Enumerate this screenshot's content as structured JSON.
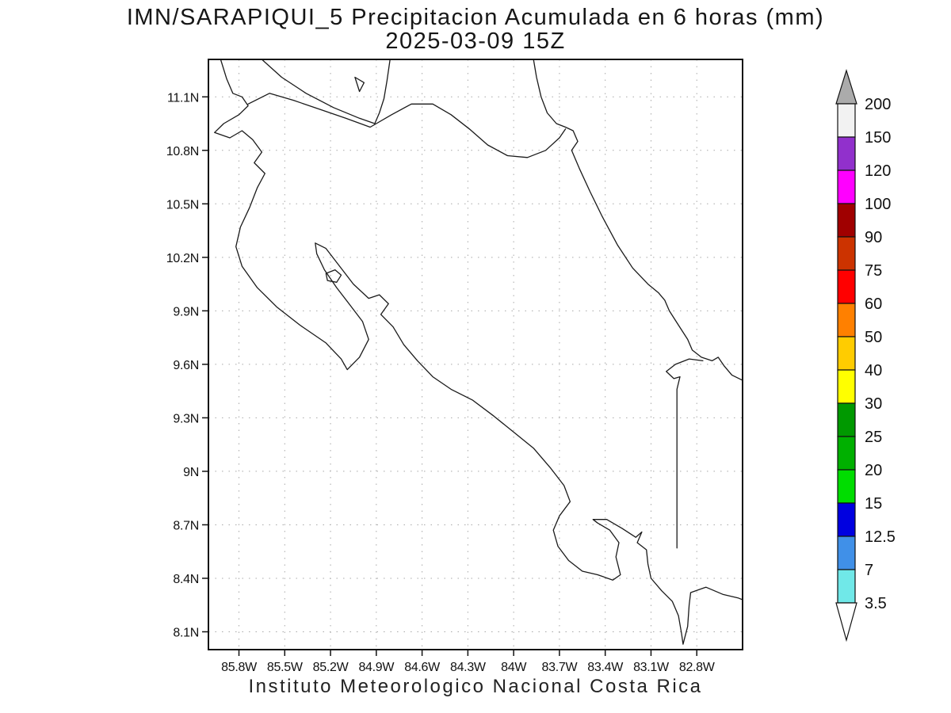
{
  "title": {
    "line1": "IMN/SARAPIQUI_5 Precipitacion Acumulada en 6 horas (mm)",
    "line2": "2025-03-09 15Z"
  },
  "caption": "Instituto Meteorologico Nacional Costa Rica",
  "axes": {
    "extent": {
      "lon_min": -86.0,
      "lon_max": -82.5,
      "lat_min": 8.0,
      "lat_max": 11.31
    },
    "grid_style": "dotted",
    "lat_ticks": [
      {
        "value": 11.1,
        "label": "11.1N"
      },
      {
        "value": 10.8,
        "label": "10.8N"
      },
      {
        "value": 10.5,
        "label": "10.5N"
      },
      {
        "value": 10.2,
        "label": "10.2N"
      },
      {
        "value": 9.9,
        "label": "9.9N"
      },
      {
        "value": 9.6,
        "label": "9.6N"
      },
      {
        "value": 9.3,
        "label": "9.3N"
      },
      {
        "value": 9.0,
        "label": "9N"
      },
      {
        "value": 8.7,
        "label": "8.7N"
      },
      {
        "value": 8.4,
        "label": "8.4N"
      },
      {
        "value": 8.1,
        "label": "8.1N"
      }
    ],
    "lon_ticks": [
      {
        "value": -85.8,
        "label": "85.8W"
      },
      {
        "value": -85.5,
        "label": "85.5W"
      },
      {
        "value": -85.2,
        "label": "85.2W"
      },
      {
        "value": -84.9,
        "label": "84.9W"
      },
      {
        "value": -84.6,
        "label": "84.6W"
      },
      {
        "value": -84.3,
        "label": "84.3W"
      },
      {
        "value": -84.0,
        "label": "84W"
      },
      {
        "value": -83.7,
        "label": "83.7W"
      },
      {
        "value": -83.4,
        "label": "83.4W"
      },
      {
        "value": -83.1,
        "label": "83.1W"
      },
      {
        "value": -82.8,
        "label": "82.8W"
      }
    ]
  },
  "colorbar": {
    "labels_top_to_bottom": [
      "200",
      "150",
      "120",
      "100",
      "90",
      "75",
      "60",
      "50",
      "40",
      "30",
      "25",
      "20",
      "15",
      "12.5",
      "7",
      "3.5"
    ],
    "segment_colors_top_to_bottom": [
      "#f2f2f2",
      "#9130cc",
      "#ff00ff",
      "#a00000",
      "#cc3300",
      "#ff0000",
      "#ff8000",
      "#ffcc00",
      "#ffff00",
      "#009900",
      "#00b000",
      "#00dd00",
      "#0000e0",
      "#4090e8",
      "#70e8e8"
    ],
    "arrow_top_color": "#ababab",
    "arrow_bottom_color": "#ffffff"
  },
  "map": {
    "stroke_color": "#1a1a1a",
    "grid_color": "#a8a8a8",
    "coastlines": {
      "pacific_coast": [
        [
          -85.92,
          11.31
        ],
        [
          -85.88,
          11.2
        ],
        [
          -85.84,
          11.12
        ],
        [
          -85.78,
          11.1
        ],
        [
          -85.74,
          11.05
        ],
        [
          -85.8,
          11.0
        ],
        [
          -85.9,
          10.95
        ],
        [
          -85.96,
          10.9
        ],
        [
          -85.86,
          10.87
        ],
        [
          -85.78,
          10.91
        ],
        [
          -85.71,
          10.86
        ],
        [
          -85.65,
          10.79
        ],
        [
          -85.7,
          10.73
        ],
        [
          -85.63,
          10.67
        ],
        [
          -85.68,
          10.59
        ],
        [
          -85.73,
          10.48
        ],
        [
          -85.79,
          10.37
        ],
        [
          -85.82,
          10.26
        ],
        [
          -85.78,
          10.15
        ],
        [
          -85.68,
          10.03
        ],
        [
          -85.55,
          9.92
        ],
        [
          -85.4,
          9.82
        ],
        [
          -85.23,
          9.72
        ],
        [
          -85.13,
          9.63
        ],
        [
          -85.09,
          9.57
        ],
        [
          -85.01,
          9.64
        ],
        [
          -84.95,
          9.74
        ],
        [
          -84.99,
          9.84
        ],
        [
          -85.07,
          9.93
        ],
        [
          -85.16,
          10.03
        ],
        [
          -85.24,
          10.13
        ],
        [
          -85.29,
          10.22
        ],
        [
          -85.3,
          10.28
        ],
        [
          -85.23,
          10.25
        ],
        [
          -85.14,
          10.15
        ],
        [
          -85.05,
          10.05
        ],
        [
          -84.95,
          9.97
        ],
        [
          -84.88,
          9.99
        ],
        [
          -84.82,
          9.94
        ],
        [
          -84.87,
          9.88
        ],
        [
          -84.79,
          9.81
        ],
        [
          -84.72,
          9.71
        ],
        [
          -84.63,
          9.62
        ],
        [
          -84.53,
          9.53
        ],
        [
          -84.41,
          9.46
        ],
        [
          -84.27,
          9.4
        ],
        [
          -84.13,
          9.31
        ],
        [
          -84.0,
          9.22
        ],
        [
          -83.87,
          9.13
        ],
        [
          -83.76,
          9.02
        ],
        [
          -83.67,
          8.92
        ],
        [
          -83.63,
          8.83
        ],
        [
          -83.7,
          8.75
        ],
        [
          -83.74,
          8.67
        ],
        [
          -83.71,
          8.58
        ],
        [
          -83.64,
          8.5
        ],
        [
          -83.55,
          8.44
        ],
        [
          -83.45,
          8.42
        ],
        [
          -83.35,
          8.39
        ],
        [
          -83.3,
          8.42
        ],
        [
          -83.33,
          8.52
        ],
        [
          -83.31,
          8.6
        ],
        [
          -83.37,
          8.67
        ],
        [
          -83.45,
          8.71
        ],
        [
          -83.48,
          8.73
        ],
        [
          -83.39,
          8.73
        ],
        [
          -83.29,
          8.68
        ],
        [
          -83.2,
          8.63
        ],
        [
          -83.16,
          8.66
        ],
        [
          -83.19,
          8.6
        ],
        [
          -83.13,
          8.56
        ],
        [
          -83.12,
          8.48
        ],
        [
          -83.1,
          8.4
        ],
        [
          -83.03,
          8.33
        ],
        [
          -82.96,
          8.27
        ],
        [
          -82.92,
          8.19
        ],
        [
          -82.9,
          8.09
        ],
        [
          -82.89,
          8.03
        ],
        [
          -82.86,
          8.13
        ],
        [
          -82.85,
          8.25
        ],
        [
          -82.84,
          8.32
        ],
        [
          -82.74,
          8.35
        ],
        [
          -82.63,
          8.31
        ],
        [
          -82.53,
          8.29
        ],
        [
          -82.5,
          8.28
        ]
      ],
      "lake_nicaragua_shore": [
        [
          -85.65,
          11.31
        ],
        [
          -85.52,
          11.21
        ],
        [
          -85.36,
          11.12
        ],
        [
          -85.18,
          11.04
        ],
        [
          -85.01,
          10.98
        ],
        [
          -84.91,
          10.95
        ],
        [
          -84.88,
          11.01
        ],
        [
          -84.85,
          11.09
        ],
        [
          -84.83,
          11.19
        ],
        [
          -84.81,
          11.31
        ]
      ],
      "nicaragua_border_san_juan_river": [
        [
          -85.74,
          11.06
        ],
        [
          -85.6,
          11.12
        ],
        [
          -85.44,
          11.08
        ],
        [
          -85.27,
          11.03
        ],
        [
          -85.1,
          10.98
        ],
        [
          -84.94,
          10.93
        ],
        [
          -84.8,
          11.0
        ],
        [
          -84.67,
          11.06
        ],
        [
          -84.53,
          11.06
        ],
        [
          -84.41,
          11.0
        ],
        [
          -84.29,
          10.92
        ],
        [
          -84.17,
          10.83
        ],
        [
          -84.04,
          10.77
        ],
        [
          -83.91,
          10.76
        ],
        [
          -83.79,
          10.8
        ],
        [
          -83.7,
          10.87
        ],
        [
          -83.66,
          10.92
        ]
      ],
      "caribbean_coast": [
        [
          -83.87,
          11.31
        ],
        [
          -83.85,
          11.21
        ],
        [
          -83.82,
          11.1
        ],
        [
          -83.78,
          11.01
        ],
        [
          -83.72,
          10.95
        ],
        [
          -83.66,
          10.93
        ],
        [
          -83.61,
          10.91
        ],
        [
          -83.58,
          10.85
        ],
        [
          -83.62,
          10.8
        ],
        [
          -83.57,
          10.7
        ],
        [
          -83.5,
          10.57
        ],
        [
          -83.42,
          10.43
        ],
        [
          -83.32,
          10.27
        ],
        [
          -83.22,
          10.14
        ],
        [
          -83.12,
          10.05
        ],
        [
          -83.05,
          10.0
        ],
        [
          -83.01,
          9.96
        ],
        [
          -82.98,
          9.9
        ],
        [
          -82.92,
          9.82
        ],
        [
          -82.86,
          9.74
        ],
        [
          -82.83,
          9.68
        ],
        [
          -82.77,
          9.64
        ],
        [
          -82.7,
          9.62
        ],
        [
          -82.66,
          9.64
        ],
        [
          -82.62,
          9.59
        ],
        [
          -82.57,
          9.54
        ],
        [
          -82.5,
          9.51
        ]
      ],
      "panama_border": [
        [
          -82.76,
          9.62
        ],
        [
          -82.85,
          9.63
        ],
        [
          -82.94,
          9.6
        ],
        [
          -83.0,
          9.56
        ],
        [
          -82.95,
          9.52
        ],
        [
          -82.91,
          9.53
        ],
        [
          -82.93,
          9.46
        ],
        [
          -82.93,
          9.15
        ],
        [
          -82.93,
          8.85
        ],
        [
          -82.93,
          8.57
        ]
      ],
      "chira_island": [
        [
          -85.23,
          10.11
        ],
        [
          -85.17,
          10.13
        ],
        [
          -85.13,
          10.1
        ],
        [
          -85.16,
          10.06
        ],
        [
          -85.22,
          10.07
        ],
        [
          -85.23,
          10.11
        ]
      ],
      "lake_island": [
        [
          -85.04,
          11.21
        ],
        [
          -85.01,
          11.13
        ],
        [
          -84.98,
          11.18
        ],
        [
          -85.04,
          11.21
        ]
      ]
    }
  }
}
